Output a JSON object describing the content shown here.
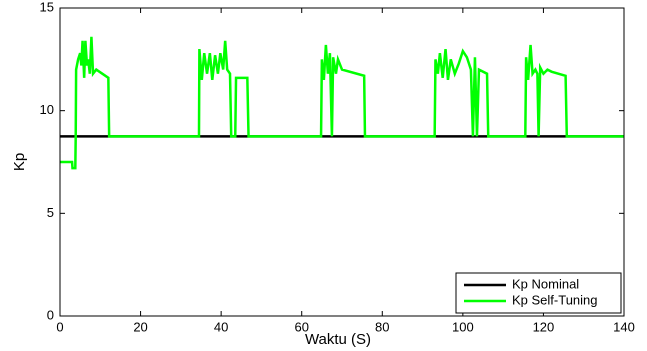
{
  "chart_data": {
    "type": "line",
    "x_label": "Waktu (S)",
    "y_label": "Kp",
    "xlim": [
      0,
      140
    ],
    "ylim": [
      0,
      15
    ],
    "xticks": [
      0,
      20,
      40,
      60,
      80,
      100,
      120,
      140
    ],
    "yticks": [
      0,
      5,
      10,
      15
    ],
    "grid": false,
    "legend": "lower right",
    "series": [
      {
        "name": "Kp Nominal",
        "color": "#000000",
        "x": [
          0,
          140
        ],
        "values": [
          8.75,
          8.75
        ]
      },
      {
        "name": "Kp Self-Tuning",
        "color": "#00ff00",
        "x": [
          0,
          3,
          3.1,
          3.8,
          3.9,
          4,
          4.5,
          5,
          5.3,
          5.6,
          6,
          6.3,
          6.7,
          7,
          7.4,
          7.8,
          8.2,
          9,
          12,
          12.2,
          34.5,
          34.6,
          35.2,
          35.8,
          36.5,
          37.2,
          37.8,
          38.5,
          39.2,
          39.8,
          40.5,
          41,
          41.5,
          42.2,
          42.5,
          43.5,
          43.7,
          46.5,
          46.8,
          64.8,
          65,
          65.5,
          66,
          66.5,
          67,
          67.5,
          67.8,
          68.5,
          69,
          70,
          75.5,
          75.7,
          93,
          93.2,
          93.8,
          94.3,
          95,
          95.7,
          96.3,
          97,
          98,
          99,
          100,
          101,
          102,
          102.5,
          103,
          103.5,
          104,
          106,
          106.3,
          115.5,
          115.7,
          116.2,
          116.8,
          117.3,
          118,
          118.5,
          118.8,
          119.2,
          120,
          121,
          122,
          125.5,
          125.8,
          140
        ],
        "values": [
          7.5,
          7.5,
          7.2,
          7.2,
          8.75,
          12,
          12.5,
          12.8,
          12.2,
          13.4,
          11.6,
          13.4,
          12.2,
          12.5,
          11.8,
          13.6,
          11.8,
          12,
          11.6,
          8.75,
          8.75,
          13,
          11.5,
          12.8,
          11.8,
          12.8,
          11.5,
          12.7,
          11.8,
          12.8,
          12,
          13.4,
          12,
          11.8,
          8.75,
          8.75,
          11.6,
          11.6,
          8.75,
          8.75,
          12.5,
          11.5,
          13.2,
          11.8,
          12.8,
          8.75,
          12.6,
          11.8,
          12.5,
          12,
          11.7,
          8.75,
          8.75,
          12.5,
          11.8,
          12.8,
          11.6,
          13,
          11.5,
          12.5,
          11.8,
          12.3,
          12.9,
          12.6,
          12,
          8.75,
          12.6,
          8.75,
          12,
          11.8,
          8.75,
          8.75,
          12.6,
          11.5,
          13.2,
          11.8,
          12,
          11.8,
          8.75,
          12.1,
          11.8,
          12,
          11.9,
          11.7,
          8.75,
          8.75
        ]
      }
    ]
  }
}
